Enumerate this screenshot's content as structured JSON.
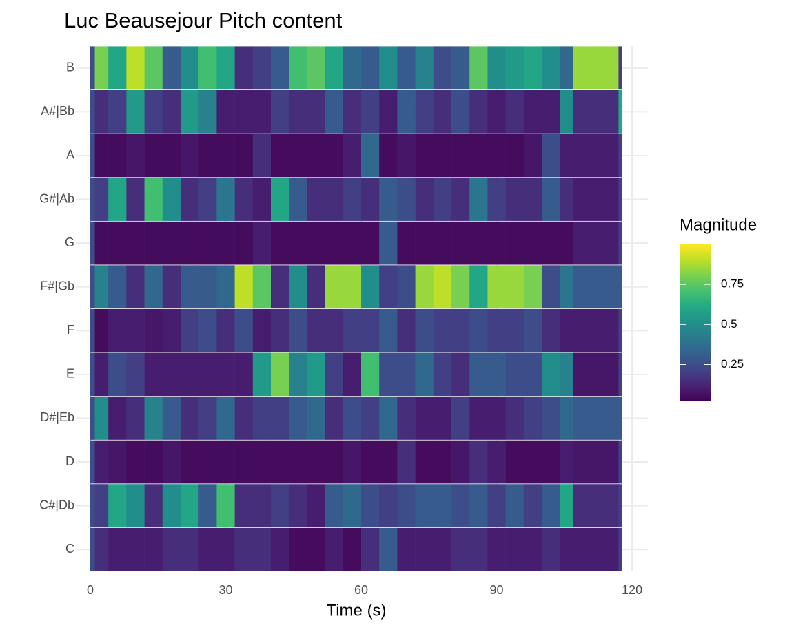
{
  "chart_data": {
    "type": "heatmap",
    "title": "Luc Beausejour Pitch content",
    "xlabel": "Time (s)",
    "colorbar_title": "Magnitude",
    "colorscale": "viridis",
    "zlim": [
      0.02,
      1.0
    ],
    "colorbar_ticks": [
      0.25,
      0.5,
      0.75
    ],
    "xlim": [
      -3.2,
      123.5
    ],
    "xticks": [
      0,
      30,
      60,
      90,
      120
    ],
    "xminorticks": [
      15,
      45,
      75,
      105
    ],
    "grid": true,
    "x": [
      0,
      1,
      4,
      8,
      12,
      16,
      20,
      24,
      28,
      32,
      36,
      40,
      44,
      48,
      52,
      56,
      60,
      64,
      68,
      72,
      76,
      80,
      84,
      88,
      92,
      96,
      100,
      104,
      107,
      117,
      117.8
    ],
    "y": [
      "C",
      "C#|Db",
      "D",
      "D#|Eb",
      "E",
      "F",
      "F#|Gb",
      "G",
      "G#|Ab",
      "A",
      "A#|Bb",
      "B"
    ],
    "values": [
      [
        0.25,
        0.15,
        0.1,
        0.1,
        0.1,
        0.15,
        0.15,
        0.1,
        0.1,
        0.15,
        0.15,
        0.1,
        0.05,
        0.05,
        0.1,
        0.05,
        0.15,
        0.3,
        0.1,
        0.1,
        0.1,
        0.15,
        0.15,
        0.1,
        0.1,
        0.1,
        0.15,
        0.1,
        0.1,
        0.2
      ],
      [
        0.25,
        0.2,
        0.6,
        0.5,
        0.15,
        0.5,
        0.6,
        0.3,
        0.7,
        0.15,
        0.15,
        0.2,
        0.15,
        0.1,
        0.3,
        0.35,
        0.25,
        0.2,
        0.25,
        0.3,
        0.3,
        0.25,
        0.3,
        0.2,
        0.3,
        0.2,
        0.3,
        0.6,
        0.15,
        0.2
      ],
      [
        0.25,
        0.1,
        0.08,
        0.05,
        0.05,
        0.08,
        0.05,
        0.05,
        0.05,
        0.05,
        0.05,
        0.05,
        0.05,
        0.05,
        0.05,
        0.08,
        0.05,
        0.05,
        0.15,
        0.05,
        0.05,
        0.08,
        0.15,
        0.1,
        0.05,
        0.05,
        0.05,
        0.1,
        0.08,
        0.2
      ],
      [
        0.25,
        0.5,
        0.1,
        0.15,
        0.45,
        0.3,
        0.15,
        0.2,
        0.35,
        0.15,
        0.2,
        0.2,
        0.3,
        0.35,
        0.15,
        0.25,
        0.2,
        0.35,
        0.15,
        0.1,
        0.1,
        0.2,
        0.1,
        0.1,
        0.15,
        0.2,
        0.25,
        0.35,
        0.3,
        0.3
      ],
      [
        0.25,
        0.1,
        0.25,
        0.2,
        0.1,
        0.1,
        0.1,
        0.1,
        0.1,
        0.1,
        0.55,
        0.8,
        0.45,
        0.55,
        0.2,
        0.1,
        0.7,
        0.25,
        0.25,
        0.35,
        0.2,
        0.15,
        0.3,
        0.3,
        0.25,
        0.25,
        0.5,
        0.45,
        0.08,
        0.2
      ],
      [
        0.25,
        0.05,
        0.1,
        0.1,
        0.08,
        0.1,
        0.2,
        0.25,
        0.15,
        0.25,
        0.1,
        0.15,
        0.25,
        0.15,
        0.15,
        0.2,
        0.2,
        0.3,
        0.15,
        0.25,
        0.2,
        0.2,
        0.25,
        0.2,
        0.2,
        0.25,
        0.15,
        0.1,
        0.1,
        0.2
      ],
      [
        0.25,
        0.45,
        0.3,
        0.15,
        0.35,
        0.15,
        0.3,
        0.3,
        0.35,
        0.9,
        0.75,
        0.15,
        0.5,
        0.15,
        0.85,
        0.85,
        0.5,
        0.2,
        0.25,
        0.85,
        0.9,
        0.8,
        0.6,
        0.85,
        0.85,
        0.8,
        0.25,
        0.4,
        0.3,
        0.3
      ],
      [
        0.25,
        0.05,
        0.05,
        0.05,
        0.05,
        0.05,
        0.05,
        0.05,
        0.05,
        0.05,
        0.1,
        0.05,
        0.05,
        0.05,
        0.05,
        0.05,
        0.05,
        0.3,
        0.05,
        0.05,
        0.05,
        0.05,
        0.05,
        0.05,
        0.05,
        0.05,
        0.05,
        0.05,
        0.1,
        0.2
      ],
      [
        0.25,
        0.2,
        0.6,
        0.15,
        0.7,
        0.5,
        0.15,
        0.2,
        0.4,
        0.15,
        0.1,
        0.6,
        0.3,
        0.15,
        0.15,
        0.2,
        0.15,
        0.3,
        0.25,
        0.15,
        0.2,
        0.15,
        0.4,
        0.2,
        0.15,
        0.15,
        0.3,
        0.15,
        0.1,
        0.2
      ],
      [
        0.25,
        0.05,
        0.05,
        0.08,
        0.05,
        0.05,
        0.08,
        0.05,
        0.05,
        0.05,
        0.15,
        0.05,
        0.05,
        0.05,
        0.05,
        0.1,
        0.35,
        0.05,
        0.08,
        0.05,
        0.05,
        0.05,
        0.05,
        0.05,
        0.05,
        0.08,
        0.25,
        0.1,
        0.1,
        0.2
      ],
      [
        0.25,
        0.15,
        0.2,
        0.55,
        0.2,
        0.15,
        0.55,
        0.45,
        0.1,
        0.1,
        0.1,
        0.2,
        0.15,
        0.15,
        0.3,
        0.15,
        0.2,
        0.1,
        0.3,
        0.2,
        0.15,
        0.25,
        0.15,
        0.1,
        0.15,
        0.1,
        0.1,
        0.5,
        0.15,
        0.6
      ],
      [
        0.25,
        0.8,
        0.6,
        0.9,
        0.75,
        0.3,
        0.5,
        0.7,
        0.6,
        0.15,
        0.2,
        0.3,
        0.7,
        0.75,
        0.6,
        0.35,
        0.3,
        0.5,
        0.3,
        0.45,
        0.25,
        0.3,
        0.75,
        0.5,
        0.55,
        0.6,
        0.5,
        0.35,
        0.85,
        0.2
      ]
    ]
  }
}
